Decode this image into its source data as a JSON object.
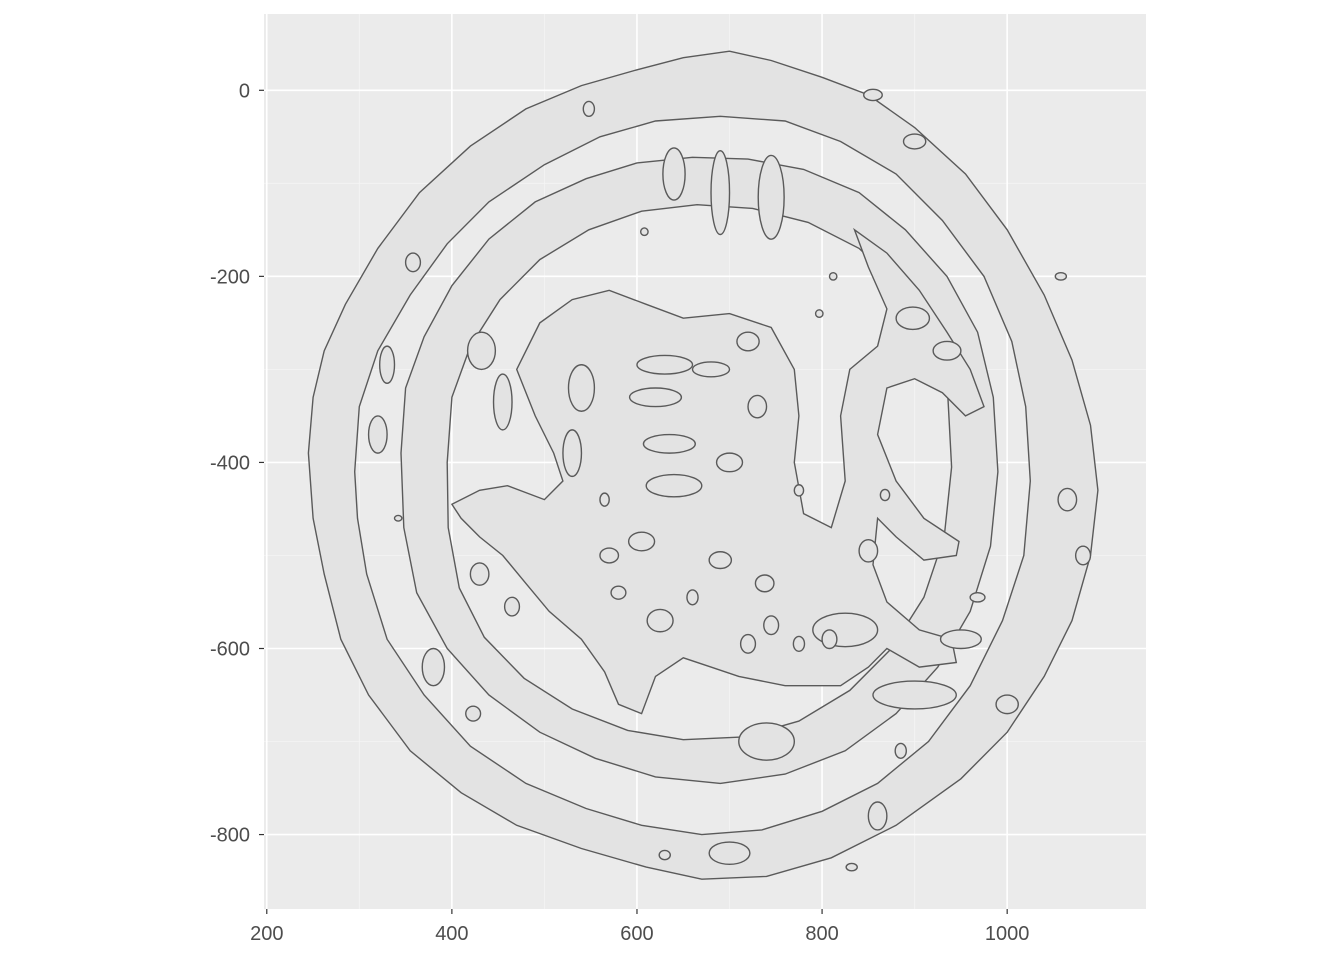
{
  "chart_data": {
    "type": "contour",
    "title": "",
    "xlabel": "",
    "ylabel": "",
    "xlim": [
      197,
      1150
    ],
    "ylim": [
      -880,
      82
    ],
    "x_ticks": [
      200,
      400,
      600,
      800,
      1000
    ],
    "y_ticks": [
      0,
      -200,
      -400,
      -600,
      -800
    ],
    "grid": true,
    "colors": {
      "panel": "#ebebeb",
      "grid": "#ffffff",
      "line": "#5a5a5a",
      "fill": "#e3e3e3"
    },
    "series": [
      {
        "outer_ring_outer": [
          [
            245,
            -390
          ],
          [
            250,
            -330
          ],
          [
            262,
            -280
          ],
          [
            285,
            -230
          ],
          [
            320,
            -170
          ],
          [
            365,
            -110
          ],
          [
            420,
            -60
          ],
          [
            480,
            -20
          ],
          [
            540,
            5
          ],
          [
            600,
            22
          ],
          [
            650,
            35
          ],
          [
            700,
            42
          ],
          [
            745,
            32
          ],
          [
            800,
            14
          ],
          [
            850,
            -5
          ],
          [
            900,
            -40
          ],
          [
            955,
            -90
          ],
          [
            1000,
            -150
          ],
          [
            1040,
            -220
          ],
          [
            1070,
            -290
          ],
          [
            1090,
            -360
          ],
          [
            1098,
            -430
          ],
          [
            1090,
            -500
          ],
          [
            1070,
            -570
          ],
          [
            1040,
            -630
          ],
          [
            1000,
            -690
          ],
          [
            950,
            -740
          ],
          [
            880,
            -790
          ],
          [
            810,
            -825
          ],
          [
            740,
            -845
          ],
          [
            670,
            -848
          ],
          [
            610,
            -835
          ],
          [
            540,
            -815
          ],
          [
            470,
            -790
          ],
          [
            410,
            -755
          ],
          [
            355,
            -710
          ],
          [
            310,
            -650
          ],
          [
            280,
            -590
          ],
          [
            262,
            -520
          ],
          [
            250,
            -460
          ]
        ],
        "outer_ring_inner": [
          [
            295,
            -410
          ],
          [
            300,
            -340
          ],
          [
            320,
            -280
          ],
          [
            355,
            -220
          ],
          [
            395,
            -165
          ],
          [
            440,
            -120
          ],
          [
            500,
            -80
          ],
          [
            560,
            -50
          ],
          [
            620,
            -33
          ],
          [
            690,
            -28
          ],
          [
            760,
            -33
          ],
          [
            820,
            -55
          ],
          [
            880,
            -90
          ],
          [
            930,
            -140
          ],
          [
            975,
            -200
          ],
          [
            1005,
            -270
          ],
          [
            1020,
            -340
          ],
          [
            1025,
            -420
          ],
          [
            1018,
            -500
          ],
          [
            995,
            -570
          ],
          [
            960,
            -640
          ],
          [
            915,
            -700
          ],
          [
            860,
            -745
          ],
          [
            800,
            -775
          ],
          [
            735,
            -795
          ],
          [
            670,
            -800
          ],
          [
            605,
            -790
          ],
          [
            545,
            -772
          ],
          [
            480,
            -745
          ],
          [
            420,
            -705
          ],
          [
            370,
            -650
          ],
          [
            330,
            -590
          ],
          [
            308,
            -520
          ],
          [
            298,
            -460
          ]
        ],
        "inner_ring_outer": [
          [
            345,
            -390
          ],
          [
            350,
            -320
          ],
          [
            370,
            -265
          ],
          [
            400,
            -210
          ],
          [
            440,
            -160
          ],
          [
            490,
            -120
          ],
          [
            545,
            -95
          ],
          [
            600,
            -78
          ],
          [
            660,
            -72
          ],
          [
            720,
            -74
          ],
          [
            780,
            -85
          ],
          [
            840,
            -110
          ],
          [
            890,
            -150
          ],
          [
            935,
            -200
          ],
          [
            968,
            -260
          ],
          [
            985,
            -330
          ],
          [
            990,
            -410
          ],
          [
            982,
            -490
          ],
          [
            960,
            -560
          ],
          [
            925,
            -620
          ],
          [
            880,
            -670
          ],
          [
            825,
            -710
          ],
          [
            760,
            -735
          ],
          [
            690,
            -745
          ],
          [
            620,
            -738
          ],
          [
            555,
            -718
          ],
          [
            495,
            -690
          ],
          [
            440,
            -650
          ],
          [
            395,
            -600
          ],
          [
            362,
            -540
          ],
          [
            348,
            -470
          ]
        ],
        "inner_ring_inner": [
          [
            395,
            -400
          ],
          [
            400,
            -330
          ],
          [
            420,
            -275
          ],
          [
            452,
            -225
          ],
          [
            495,
            -182
          ],
          [
            548,
            -150
          ],
          [
            605,
            -130
          ],
          [
            665,
            -123
          ],
          [
            725,
            -127
          ],
          [
            785,
            -142
          ],
          [
            840,
            -170
          ],
          [
            885,
            -212
          ],
          [
            918,
            -265
          ],
          [
            936,
            -330
          ],
          [
            940,
            -405
          ],
          [
            932,
            -480
          ],
          [
            910,
            -545
          ],
          [
            875,
            -600
          ],
          [
            830,
            -645
          ],
          [
            775,
            -678
          ],
          [
            715,
            -695
          ],
          [
            650,
            -698
          ],
          [
            590,
            -688
          ],
          [
            530,
            -665
          ],
          [
            478,
            -632
          ],
          [
            435,
            -588
          ],
          [
            408,
            -535
          ],
          [
            396,
            -470
          ]
        ],
        "figure_body": [
          [
            470,
            -300
          ],
          [
            495,
            -250
          ],
          [
            530,
            -225
          ],
          [
            570,
            -215
          ],
          [
            610,
            -230
          ],
          [
            650,
            -245
          ],
          [
            700,
            -240
          ],
          [
            745,
            -255
          ],
          [
            770,
            -300
          ],
          [
            775,
            -350
          ],
          [
            770,
            -400
          ],
          [
            780,
            -455
          ],
          [
            810,
            -470
          ],
          [
            825,
            -420
          ],
          [
            820,
            -350
          ],
          [
            830,
            -300
          ],
          [
            860,
            -275
          ],
          [
            870,
            -235
          ],
          [
            850,
            -190
          ],
          [
            835,
            -150
          ],
          [
            870,
            -175
          ],
          [
            905,
            -215
          ],
          [
            935,
            -260
          ],
          [
            960,
            -300
          ],
          [
            975,
            -340
          ],
          [
            955,
            -350
          ],
          [
            930,
            -325
          ],
          [
            900,
            -310
          ],
          [
            870,
            -320
          ],
          [
            860,
            -370
          ],
          [
            880,
            -420
          ],
          [
            910,
            -460
          ],
          [
            948,
            -485
          ],
          [
            945,
            -500
          ],
          [
            910,
            -505
          ],
          [
            880,
            -480
          ],
          [
            860,
            -460
          ],
          [
            855,
            -510
          ],
          [
            870,
            -550
          ],
          [
            905,
            -580
          ],
          [
            940,
            -590
          ],
          [
            945,
            -615
          ],
          [
            905,
            -620
          ],
          [
            870,
            -600
          ],
          [
            850,
            -620
          ],
          [
            820,
            -640
          ],
          [
            760,
            -640
          ],
          [
            710,
            -630
          ],
          [
            680,
            -620
          ],
          [
            650,
            -610
          ],
          [
            620,
            -630
          ],
          [
            605,
            -670
          ],
          [
            580,
            -660
          ],
          [
            565,
            -625
          ],
          [
            540,
            -590
          ],
          [
            505,
            -560
          ],
          [
            480,
            -530
          ],
          [
            455,
            -500
          ],
          [
            430,
            -480
          ],
          [
            410,
            -460
          ],
          [
            400,
            -445
          ],
          [
            430,
            -430
          ],
          [
            460,
            -425
          ],
          [
            500,
            -440
          ],
          [
            520,
            -420
          ],
          [
            510,
            -390
          ],
          [
            490,
            -350
          ]
        ],
        "blobs": [
          {
            "cx": 640,
            "cy": -90,
            "rx": 12,
            "ry": 28
          },
          {
            "cx": 690,
            "cy": -110,
            "rx": 10,
            "ry": 45
          },
          {
            "cx": 745,
            "cy": -115,
            "rx": 14,
            "ry": 45
          },
          {
            "cx": 432,
            "cy": -280,
            "rx": 15,
            "ry": 20
          },
          {
            "cx": 455,
            "cy": -335,
            "rx": 10,
            "ry": 30
          },
          {
            "cx": 358,
            "cy": -185,
            "rx": 8,
            "ry": 10
          },
          {
            "cx": 898,
            "cy": -245,
            "rx": 18,
            "ry": 12
          },
          {
            "cx": 935,
            "cy": -280,
            "rx": 15,
            "ry": 10
          },
          {
            "cx": 950,
            "cy": -590,
            "rx": 22,
            "ry": 10
          },
          {
            "cx": 850,
            "cy": -495,
            "rx": 10,
            "ry": 12
          },
          {
            "cx": 825,
            "cy": -580,
            "rx": 35,
            "ry": 18
          },
          {
            "cx": 900,
            "cy": -650,
            "rx": 45,
            "ry": 15
          },
          {
            "cx": 740,
            "cy": -700,
            "rx": 30,
            "ry": 20
          },
          {
            "cx": 570,
            "cy": -500,
            "rx": 10,
            "ry": 8
          },
          {
            "cx": 605,
            "cy": -485,
            "rx": 14,
            "ry": 10
          },
          {
            "cx": 625,
            "cy": -570,
            "rx": 14,
            "ry": 12
          },
          {
            "cx": 690,
            "cy": -505,
            "rx": 12,
            "ry": 9
          },
          {
            "cx": 738,
            "cy": -530,
            "rx": 10,
            "ry": 9
          },
          {
            "cx": 745,
            "cy": -575,
            "rx": 8,
            "ry": 10
          },
          {
            "cx": 660,
            "cy": -545,
            "rx": 6,
            "ry": 8
          },
          {
            "cx": 720,
            "cy": -595,
            "rx": 8,
            "ry": 10
          },
          {
            "cx": 808,
            "cy": -590,
            "rx": 8,
            "ry": 10
          },
          {
            "cx": 775,
            "cy": -595,
            "rx": 6,
            "ry": 8
          },
          {
            "cx": 580,
            "cy": -540,
            "rx": 8,
            "ry": 7
          },
          {
            "cx": 465,
            "cy": -555,
            "rx": 8,
            "ry": 10
          },
          {
            "cx": 430,
            "cy": -520,
            "rx": 10,
            "ry": 12
          },
          {
            "cx": 380,
            "cy": -620,
            "rx": 12,
            "ry": 20
          },
          {
            "cx": 423,
            "cy": -670,
            "rx": 8,
            "ry": 8
          },
          {
            "cx": 1065,
            "cy": -440,
            "rx": 10,
            "ry": 12
          },
          {
            "cx": 1082,
            "cy": -500,
            "rx": 8,
            "ry": 10
          },
          {
            "cx": 1000,
            "cy": -660,
            "rx": 12,
            "ry": 10
          },
          {
            "cx": 885,
            "cy": -710,
            "rx": 6,
            "ry": 8
          },
          {
            "cx": 320,
            "cy": -370,
            "rx": 10,
            "ry": 20
          },
          {
            "cx": 330,
            "cy": -295,
            "rx": 8,
            "ry": 20
          },
          {
            "cx": 900,
            "cy": -55,
            "rx": 12,
            "ry": 8
          },
          {
            "cx": 855,
            "cy": -5,
            "rx": 10,
            "ry": 6
          },
          {
            "cx": 548,
            "cy": -20,
            "rx": 6,
            "ry": 8
          },
          {
            "cx": 832,
            "cy": -835,
            "rx": 6,
            "ry": 4
          },
          {
            "cx": 630,
            "cy": -822,
            "rx": 6,
            "ry": 5
          },
          {
            "cx": 700,
            "cy": -820,
            "rx": 22,
            "ry": 12
          },
          {
            "cx": 860,
            "cy": -780,
            "rx": 10,
            "ry": 15
          },
          {
            "cx": 968,
            "cy": -545,
            "rx": 8,
            "ry": 5
          },
          {
            "cx": 1058,
            "cy": -200,
            "rx": 6,
            "ry": 4
          },
          {
            "cx": 700,
            "cy": -400,
            "rx": 14,
            "ry": 10
          },
          {
            "cx": 640,
            "cy": -425,
            "rx": 30,
            "ry": 12
          },
          {
            "cx": 635,
            "cy": -380,
            "rx": 28,
            "ry": 10
          },
          {
            "cx": 620,
            "cy": -330,
            "rx": 28,
            "ry": 10
          },
          {
            "cx": 630,
            "cy": -295,
            "rx": 30,
            "ry": 10
          },
          {
            "cx": 540,
            "cy": -320,
            "rx": 14,
            "ry": 25
          },
          {
            "cx": 530,
            "cy": -390,
            "rx": 10,
            "ry": 25
          },
          {
            "cx": 720,
            "cy": -270,
            "rx": 12,
            "ry": 10
          },
          {
            "cx": 730,
            "cy": -340,
            "rx": 10,
            "ry": 12
          },
          {
            "cx": 680,
            "cy": -300,
            "rx": 20,
            "ry": 8
          },
          {
            "cx": 565,
            "cy": -440,
            "rx": 5,
            "ry": 7
          },
          {
            "cx": 868,
            "cy": -435,
            "rx": 5,
            "ry": 6
          },
          {
            "cx": 775,
            "cy": -430,
            "rx": 5,
            "ry": 6
          },
          {
            "cx": 812,
            "cy": -200,
            "rx": 4,
            "ry": 4
          },
          {
            "cx": 797,
            "cy": -240,
            "rx": 4,
            "ry": 4
          },
          {
            "cx": 608,
            "cy": -152,
            "rx": 4,
            "ry": 4
          },
          {
            "cx": 342,
            "cy": -460,
            "rx": 4,
            "ry": 3
          }
        ]
      }
    ]
  }
}
